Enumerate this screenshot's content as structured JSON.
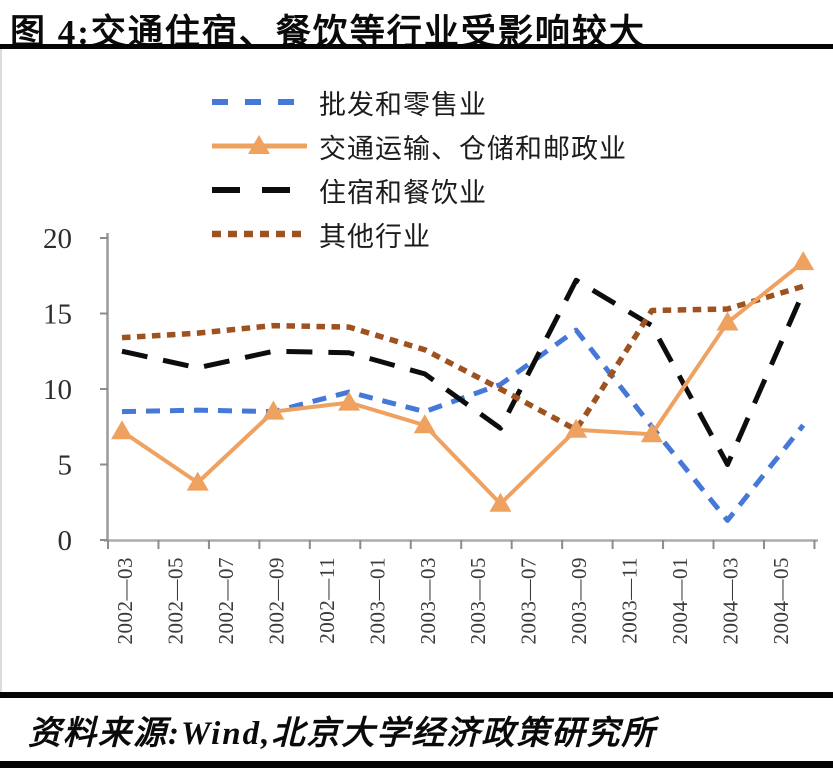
{
  "figure": {
    "title": "图 4:交通住宿、餐饮等行业受影响较大",
    "source_note": "资料来源:Wind,北京大学经济政策研究所"
  },
  "chart_data": {
    "type": "line",
    "title": "图 4:交通住宿、餐饮等行业受影响较大",
    "xlabel": "",
    "ylabel": "",
    "ylim": [
      0,
      20
    ],
    "y_ticks": [
      0,
      5,
      10,
      15,
      20
    ],
    "grid": false,
    "legend_position": "top-center",
    "x_tick_labels": [
      "2002—03",
      "2002—05",
      "2002—07",
      "2002—09",
      "2002—11",
      "2003—01",
      "2003—03",
      "2003—05",
      "2003—07",
      "2003—09",
      "2003—11",
      "2004—01",
      "2004—03",
      "2004—05"
    ],
    "x_axis_note": "labels every 2 months from 2002-03 to 2004-05; data points quarterly",
    "series_x_months": [
      0,
      3,
      6,
      9,
      12,
      15,
      18,
      21,
      24,
      27
    ],
    "series": [
      {
        "name": "批发和零售业",
        "color": "#4678d8",
        "line_style": "dashed-medium",
        "marker": "none",
        "values": [
          8.5,
          8.6,
          8.5,
          9.8,
          8.5,
          10.3,
          13.9,
          7.5,
          1.3,
          7.6
        ]
      },
      {
        "name": "交通运输、仓储和邮政业",
        "color": "#efa160",
        "line_style": "solid",
        "marker": "triangle",
        "values": [
          7.2,
          3.8,
          8.5,
          9.1,
          7.6,
          2.4,
          7.3,
          7.0,
          14.4,
          18.4
        ]
      },
      {
        "name": "住宿和餐饮业",
        "color": "#0d0d0d",
        "line_style": "dashed-long",
        "marker": "none",
        "values": [
          12.5,
          11.4,
          12.5,
          12.4,
          11.0,
          7.4,
          17.2,
          14.2,
          5.0,
          16.4
        ]
      },
      {
        "name": "其他行业",
        "color": "#9e521f",
        "line_style": "dashed-short",
        "marker": "none",
        "values": [
          13.4,
          13.7,
          14.2,
          14.1,
          12.6,
          10.0,
          7.3,
          15.2,
          15.3,
          16.8
        ]
      }
    ]
  }
}
